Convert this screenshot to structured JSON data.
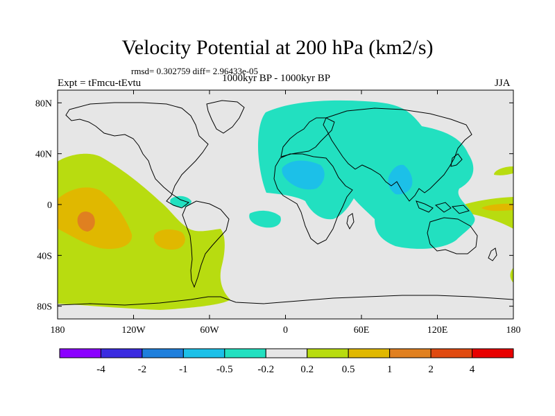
{
  "title": "Velocity Potential at 200 hPa (km2/s)",
  "stats": "rmsd= 0.302759  diff= 2.96433e-05",
  "period": "1000kyr BP - 1000kyr BP",
  "left_label": "Expt = tFmcu-tEvtu",
  "right_label": "JJA",
  "chart_data": {
    "type": "heatmap",
    "map": "global cylindrical equidistant, Pacific-centered edges 180",
    "field": "velocity potential anomaly at 200 hPa",
    "units": "km2/s",
    "lon_range": [
      -180,
      180
    ],
    "lat_range": [
      -90,
      90
    ],
    "x_ticks": [
      {
        "value": -180,
        "label": "180"
      },
      {
        "value": -120,
        "label": "120W"
      },
      {
        "value": -60,
        "label": "60W"
      },
      {
        "value": 0,
        "label": "0"
      },
      {
        "value": 60,
        "label": "60E"
      },
      {
        "value": 120,
        "label": "120E"
      },
      {
        "value": 180,
        "label": "180"
      }
    ],
    "y_ticks": [
      {
        "value": 80,
        "label": "80N"
      },
      {
        "value": 40,
        "label": "40N"
      },
      {
        "value": 0,
        "label": "0"
      },
      {
        "value": -40,
        "label": "40S"
      },
      {
        "value": -80,
        "label": "80S"
      }
    ],
    "colorbar": {
      "colors": [
        "#8b00ff",
        "#3a2be0",
        "#1f7fdc",
        "#1cc0e8",
        "#22e0c0",
        "#e6e6e6",
        "#b8dc10",
        "#e0b800",
        "#e08020",
        "#e04a10",
        "#e80000"
      ],
      "labels": [
        "-4",
        "-2",
        "-1",
        "-0.5",
        "-0.2",
        "0.2",
        "0.5",
        "1",
        "2",
        "4"
      ]
    },
    "regions": [
      {
        "name": "eurasia-africa-negative",
        "level": "-0.5 to -0.2",
        "lon": [
          -15,
          100
        ],
        "lat": [
          -25,
          80
        ]
      },
      {
        "name": "saharan-minimum",
        "level": "-1 to -0.5",
        "lon": [
          5,
          30
        ],
        "lat": [
          10,
          27
        ]
      },
      {
        "name": "south-asia-minimum",
        "level": "-1 to -0.5",
        "lon": [
          83,
          100
        ],
        "lat": [
          5,
          25
        ]
      },
      {
        "name": "central-america-negative",
        "level": "-0.5 to -0.2",
        "lon": [
          -85,
          -75
        ],
        "lat": [
          0,
          8
        ]
      },
      {
        "name": "south-atlantic-patch",
        "level": "-0.5 to -0.2",
        "lon": [
          -20,
          -5
        ],
        "lat": [
          -15,
          -5
        ]
      },
      {
        "name": "east-pacific-positive",
        "level": "0.2 to 0.5",
        "lon": [
          -180,
          -55
        ],
        "lat": [
          -80,
          40
        ]
      },
      {
        "name": "east-pacific-maximum",
        "level": "0.5 to 1",
        "lon": [
          -180,
          -135
        ],
        "lat": [
          -30,
          12
        ]
      },
      {
        "name": "east-pacific-core",
        "level": "1 to 2",
        "lon": [
          -165,
          -155
        ],
        "lat": [
          -15,
          -5
        ]
      },
      {
        "name": "southeast-pacific-maximum",
        "level": "0.5 to 1",
        "lon": [
          -110,
          -90
        ],
        "lat": [
          -30,
          -18
        ]
      },
      {
        "name": "west-pacific-positive",
        "level": "0.2 to 0.5",
        "lon": [
          140,
          180
        ],
        "lat": [
          -15,
          25
        ]
      },
      {
        "name": "west-pacific-maximum",
        "level": "0.5 to 1",
        "lon": [
          160,
          180
        ],
        "lat": [
          -5,
          0
        ]
      }
    ]
  }
}
